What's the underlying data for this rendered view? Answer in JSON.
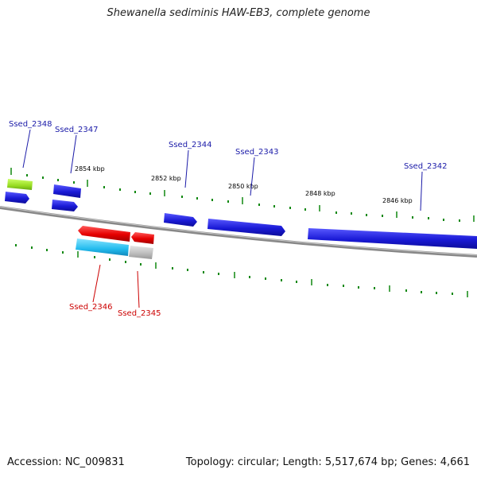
{
  "title": "Shewanella sediminis HAW-EB3, complete genome",
  "footer": {
    "accession": "Accession: NC_009831",
    "topology": "Topology: circular; Length: 5,517,674 bp; Genes: 4,661"
  },
  "colors": {
    "forward_gene": "#1a1ad6",
    "reverse_gene": "#e00000",
    "forward_label": "#1a1aa8",
    "reverse_label": "#cc0000",
    "rna_gene": "#99dd22",
    "cds_light_blue": "#22bbee",
    "pseudo_gray": "#bbbbbb",
    "backbone": "#888888",
    "tick": "#118811"
  },
  "kbp_labels": [
    "2854 kbp",
    "2852 kbp",
    "2850 kbp",
    "2848 kbp",
    "2846 kbp"
  ],
  "gene_labels": [
    {
      "text": "Ssed_2348",
      "strand": "forward"
    },
    {
      "text": "Ssed_2347",
      "strand": "forward"
    },
    {
      "text": "Ssed_2344",
      "strand": "forward"
    },
    {
      "text": "Ssed_2343",
      "strand": "forward"
    },
    {
      "text": "Ssed_2342",
      "strand": "forward"
    },
    {
      "text": "Ssed_2346",
      "strand": "reverse"
    },
    {
      "text": "Ssed_2345",
      "strand": "reverse"
    }
  ]
}
